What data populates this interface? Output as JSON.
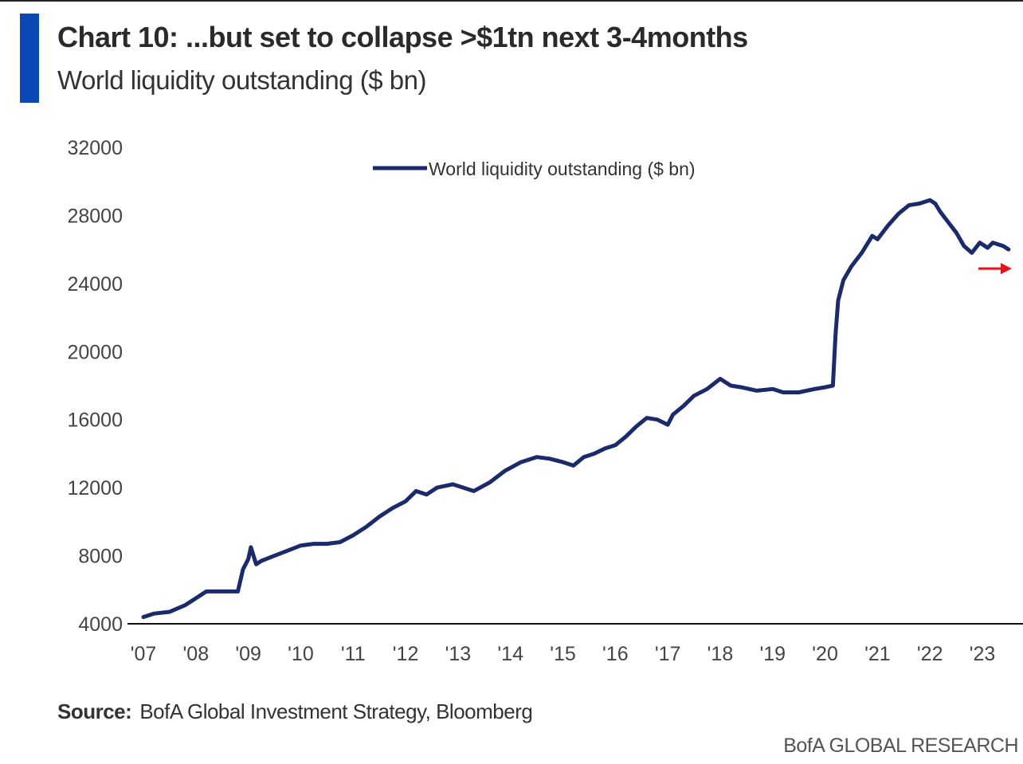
{
  "header": {
    "title": "Chart 10: ...but set to collapse >$1tn next 3-4months",
    "subtitle": "World liquidity outstanding ($ bn)"
  },
  "footer": {
    "source_label": "Source:",
    "source_text": "BofA Global Investment Strategy, Bloomberg",
    "brand": "BofA GLOBAL RESEARCH"
  },
  "colors": {
    "accent": "#0a49b5",
    "series": "#1b2a6b",
    "arrow": "#e0141b"
  },
  "chart_data": {
    "type": "line",
    "title": "",
    "xlabel": "",
    "ylabel": "",
    "ylim": [
      4000,
      32000
    ],
    "xlim": [
      2007.0,
      2023.8
    ],
    "y_ticks": [
      "32000",
      "28000",
      "24000",
      "20000",
      "16000",
      "12000",
      "8000",
      "4000"
    ],
    "x_ticks": [
      "'07",
      "'08",
      "'09",
      "'10",
      "'11",
      "'12",
      "'13",
      "'14",
      "'15",
      "'16",
      "'17",
      "'18",
      "'19",
      "'20",
      "'21",
      "'22",
      "'23"
    ],
    "grid": false,
    "legend_position": "top-center",
    "annotation": "arrow-right",
    "series": [
      {
        "name": "World liquidity outstanding ($ bn)",
        "x": [
          2007.0,
          2007.2,
          2007.5,
          2007.8,
          2008.0,
          2008.2,
          2008.4,
          2008.6,
          2008.8,
          2008.9,
          2009.0,
          2009.05,
          2009.15,
          2009.25,
          2009.5,
          2009.75,
          2010.0,
          2010.25,
          2010.5,
          2010.75,
          2011.0,
          2011.25,
          2011.5,
          2011.75,
          2012.0,
          2012.2,
          2012.4,
          2012.6,
          2012.9,
          2013.1,
          2013.3,
          2013.6,
          2013.9,
          2014.2,
          2014.5,
          2014.75,
          2015.0,
          2015.2,
          2015.4,
          2015.6,
          2015.8,
          2016.0,
          2016.2,
          2016.4,
          2016.6,
          2016.8,
          2017.0,
          2017.1,
          2017.3,
          2017.5,
          2017.75,
          2018.0,
          2018.2,
          2018.4,
          2018.7,
          2019.0,
          2019.2,
          2019.5,
          2019.8,
          2020.0,
          2020.15,
          2020.2,
          2020.25,
          2020.35,
          2020.5,
          2020.7,
          2020.9,
          2021.0,
          2021.2,
          2021.4,
          2021.6,
          2021.8,
          2022.0,
          2022.1,
          2022.2,
          2022.35,
          2022.5,
          2022.65,
          2022.8,
          2022.95,
          2023.1,
          2023.2,
          2023.3,
          2023.4,
          2023.5
        ],
        "y": [
          4400,
          4600,
          4700,
          5100,
          5500,
          5900,
          5900,
          5900,
          5900,
          7200,
          7800,
          8500,
          7500,
          7700,
          8000,
          8300,
          8600,
          8700,
          8700,
          8800,
          9200,
          9700,
          10300,
          10800,
          11200,
          11800,
          11600,
          12000,
          12200,
          12000,
          11800,
          12300,
          13000,
          13500,
          13800,
          13700,
          13500,
          13300,
          13800,
          14000,
          14300,
          14500,
          15000,
          15600,
          16100,
          16000,
          15700,
          16300,
          16800,
          17400,
          17800,
          18400,
          18000,
          17900,
          17700,
          17800,
          17600,
          17600,
          17800,
          17900,
          18000,
          21000,
          23000,
          24200,
          25000,
          25800,
          26800,
          26600,
          27400,
          28100,
          28600,
          28700,
          28900,
          28700,
          28200,
          27600,
          27000,
          26200,
          25800,
          26400,
          26100,
          26400,
          26300,
          26200,
          26000
        ]
      }
    ]
  }
}
